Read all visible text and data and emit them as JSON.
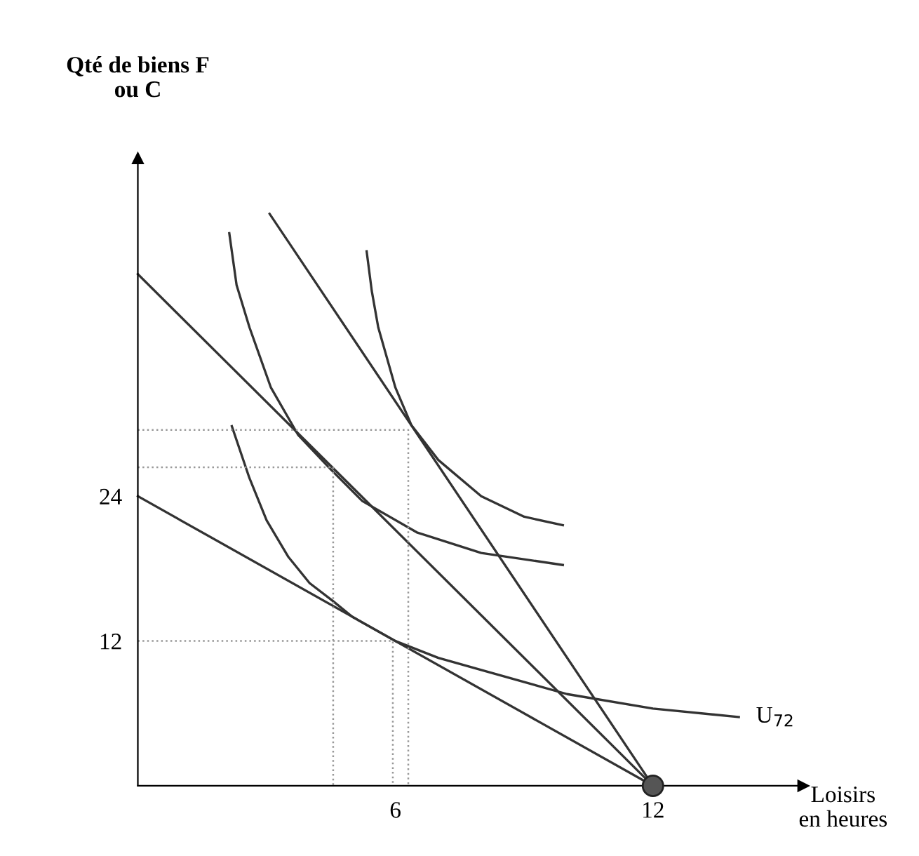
{
  "chart_data": {
    "type": "line",
    "ylabel": "Qté de biens F\nou C",
    "xlabel": "Loisirs\nen heures",
    "xlim": [
      0,
      15.5
    ],
    "ylim": [
      0,
      52
    ],
    "xticks": [
      6,
      12
    ],
    "yticks": [
      12,
      24
    ],
    "grid": false,
    "legend": false,
    "marker": "none",
    "series": [
      {
        "color": "#333333",
        "x": [
          0,
          12
        ],
        "values": [
          24,
          0
        ]
      },
      {
        "color": "#333333",
        "x": [
          0,
          12
        ],
        "values": [
          42.4,
          0
        ]
      },
      {
        "color": "#333333",
        "x": [
          3.07,
          12
        ],
        "values": [
          47.4,
          0
        ]
      },
      {
        "name": "U$_{72}$",
        "color": "#333333",
        "x": [
          2.19,
          2.6,
          3,
          3.5,
          4,
          4.55,
          5,
          6,
          7,
          8,
          10,
          12,
          14
        ],
        "values": [
          29.8,
          25.5,
          22,
          19,
          16.8,
          15.3,
          14,
          12,
          10.6,
          9.6,
          7.6,
          6.4,
          5.7
        ]
      },
      {
        "color": "#333333",
        "x": [
          2.13,
          2.3,
          2.6,
          3.1,
          3.73,
          4.5,
          5.23,
          6.5,
          8,
          9.9
        ],
        "values": [
          45.8,
          41.5,
          38,
          33,
          29.1,
          26.2,
          23.6,
          21,
          19.3,
          18.3
        ]
      },
      {
        "color": "#333333",
        "x": [
          5.33,
          5.45,
          5.6,
          6.0,
          6.37,
          7,
          8,
          9,
          9.9
        ],
        "values": [
          44.3,
          41,
          38,
          33,
          29.9,
          27,
          24,
          22.3,
          21.6
        ]
      },
      {
        "color": "#999999",
        "line_style": "dotted",
        "x": [
          0,
          6.3,
          6.3
        ],
        "values": [
          29.5,
          29.5,
          0
        ]
      },
      {
        "color": "#999999",
        "line_style": "dotted",
        "x": [
          0,
          4.55,
          4.55
        ],
        "values": [
          26.4,
          26.4,
          0
        ]
      },
      {
        "color": "#999999",
        "line_style": "dotted",
        "x": [
          0,
          5.94,
          5.94
        ],
        "values": [
          12,
          12,
          0
        ]
      },
      {
        "type": "scatter",
        "marker": "circle",
        "color": "#555555",
        "x": [
          12
        ],
        "values": [
          0
        ]
      }
    ]
  }
}
